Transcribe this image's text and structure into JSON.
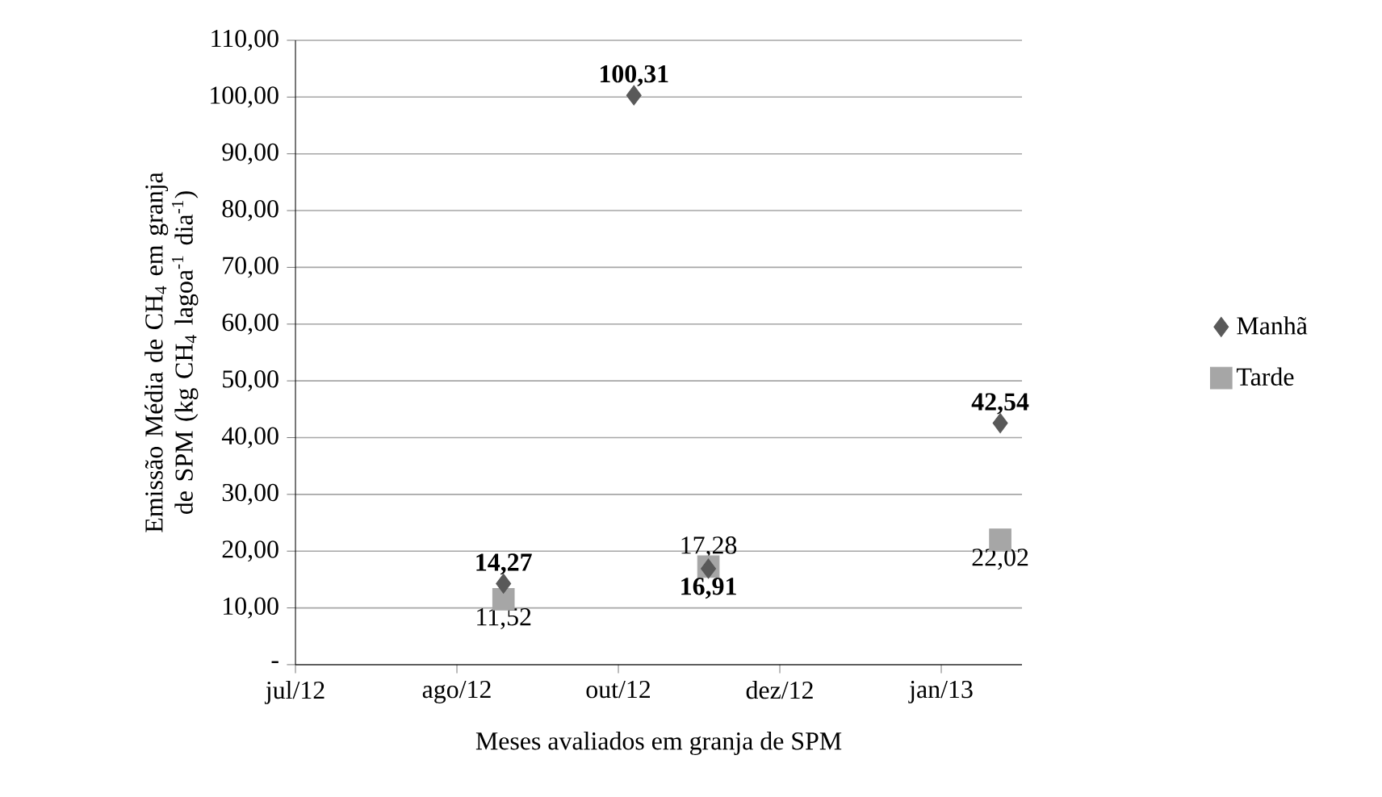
{
  "chart_data": {
    "type": "scatter",
    "xlabel": "Meses avaliados em granja de SPM",
    "ylabel": "Emissão Média de CH$_{4}$ em granja de SPM (kg CH$_{4}$ lagoa$^{-1}$ dia$^{-1}$)",
    "xlim": [
      "2012-07-01",
      "2013-02-20"
    ],
    "xticks": [
      {
        "value": "2012-07-01",
        "label": "jul/12"
      },
      {
        "value": "2012-08-22",
        "label": "ago/12"
      },
      {
        "value": "2012-10-13",
        "label": "out/12"
      },
      {
        "value": "2012-12-04",
        "label": "dez/12"
      },
      {
        "value": "2013-01-25",
        "label": "jan/13"
      }
    ],
    "ylim": [
      0,
      110
    ],
    "yticks": [
      {
        "value": 0,
        "label": "-"
      },
      {
        "value": 10,
        "label": "10,00"
      },
      {
        "value": 20,
        "label": "20,00"
      },
      {
        "value": 30,
        "label": "30,00"
      },
      {
        "value": 40,
        "label": "40,00"
      },
      {
        "value": 50,
        "label": "50,00"
      },
      {
        "value": 60,
        "label": "60,00"
      },
      {
        "value": 70,
        "label": "70,00"
      },
      {
        "value": 80,
        "label": "80,00"
      },
      {
        "value": 90,
        "label": "90,00"
      },
      {
        "value": 100,
        "label": "100,00"
      },
      {
        "value": 110,
        "label": "110,00"
      }
    ],
    "grid": "y",
    "legend": "right",
    "series": [
      {
        "name": "Manhã",
        "color": "#595959",
        "marker": "diamond",
        "x": [
          "2012-09-06",
          "2012-10-18",
          "2012-11-11",
          "2013-02-13"
        ],
        "values": [
          14.27,
          100.31,
          16.91,
          42.54
        ],
        "value_labels": [
          "14,27",
          "100,31",
          "16,91",
          "42,54"
        ]
      },
      {
        "name": "Tarde",
        "color": "#a6a6a6",
        "marker": "square",
        "x": [
          "2012-09-06",
          "2012-11-11",
          "2013-02-13"
        ],
        "values": [
          11.52,
          17.28,
          22.02
        ],
        "value_labels": [
          "11,52",
          "17,28",
          "22,02"
        ]
      }
    ]
  }
}
